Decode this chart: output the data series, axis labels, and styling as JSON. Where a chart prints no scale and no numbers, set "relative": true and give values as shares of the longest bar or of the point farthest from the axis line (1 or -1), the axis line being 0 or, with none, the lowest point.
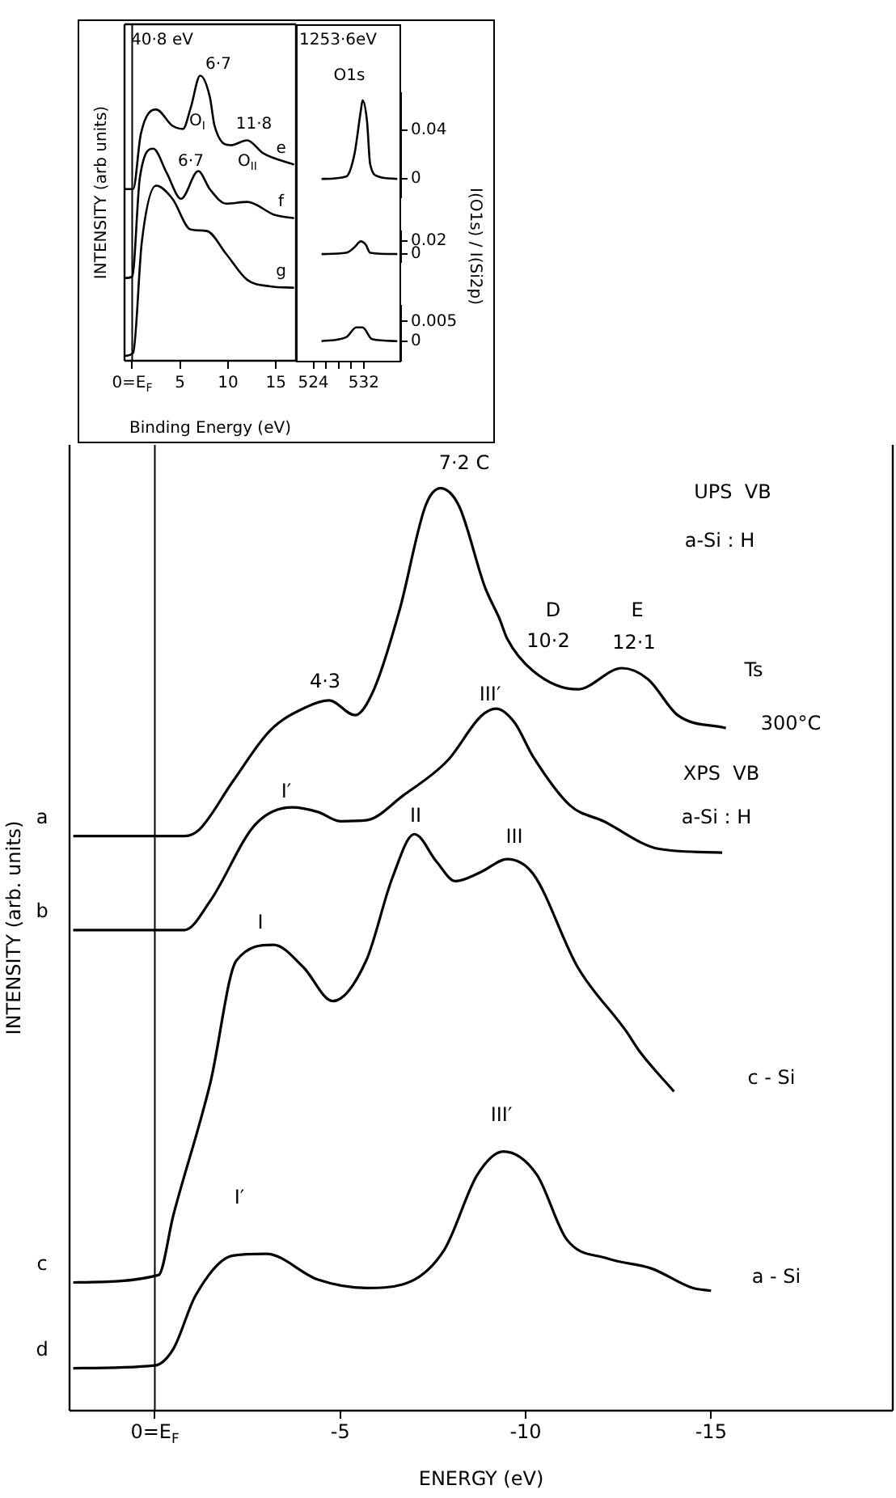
{
  "chart_data": [
    {
      "type": "line",
      "relative": true,
      "marker": "none",
      "xlabel": "ENERGY (eV)",
      "ylabel": "INTENSITY (arb. units)",
      "xlim": [
        2.3,
        -19.9
      ],
      "xticks": [
        {
          "value": 0,
          "label": "0=E$_{F}$"
        },
        -5,
        -10,
        -15
      ],
      "ref_lines": [
        {
          "axis": "x",
          "value": 0
        }
      ],
      "series": [
        {
          "name": "a",
          "color": "#000000",
          "x": [
            2.2,
            -0.8,
            -1.2,
            -2.1,
            -3.1,
            -4.1,
            -4.7,
            -5.4,
            -5.9,
            -6.6,
            -7.3,
            -7.7,
            -8.2,
            -8.9,
            -9.3,
            -9.5,
            -10.2,
            -11.4,
            -12.6,
            -13.3,
            -14.1,
            -15.4
          ],
          "values": [
            0.623,
            0.623,
            0.63,
            0.682,
            0.737,
            0.763,
            0.77,
            0.754,
            0.781,
            0.868,
            0.981,
            1,
            0.981,
            0.893,
            0.858,
            0.837,
            0.802,
            0.782,
            0.805,
            0.793,
            0.754,
            0.74
          ]
        },
        {
          "name": "b",
          "color": "#000000",
          "x": [
            2.2,
            -0.8,
            -1.5,
            -2.7,
            -3.7,
            -4.4,
            -5.0,
            -5.7,
            -6.7,
            -7.9,
            -8.8,
            -9.2,
            -9.7,
            -10.2,
            -11.2,
            -12.1,
            -13.6,
            -15.3
          ],
          "values": [
            0.521,
            0.521,
            0.553,
            0.635,
            0.654,
            0.649,
            0.639,
            0.64,
            0.667,
            0.705,
            0.753,
            0.761,
            0.746,
            0.709,
            0.656,
            0.639,
            0.609,
            0.605
          ]
        },
        {
          "name": "c",
          "color": "#000000",
          "x": [
            2.2,
            -0.1,
            -0.5,
            -1.5,
            -2.2,
            -3.2,
            -4.0,
            -4.8,
            -5.7,
            -6.4,
            -7.0,
            -7.6,
            -8.1,
            -8.8,
            -9.5,
            -10.2,
            -11.4,
            -12.7,
            -13.1,
            -14.0
          ],
          "values": [
            0.139,
            0.147,
            0.212,
            0.356,
            0.488,
            0.505,
            0.481,
            0.444,
            0.488,
            0.577,
            0.625,
            0.595,
            0.574,
            0.584,
            0.598,
            0.582,
            0.481,
            0.412,
            0.388,
            0.346
          ]
        },
        {
          "name": "d",
          "color": "#000000",
          "x": [
            2.2,
            0,
            -0.5,
            -1.1,
            -2.1,
            -3.0,
            -4.4,
            -5.7,
            -6.7,
            -7.8,
            -8.7,
            -9.4,
            -10.3,
            -11.1,
            -12.2,
            -13.4,
            -14.5,
            -15.0
          ],
          "values": [
            0.046,
            0.049,
            0.067,
            0.125,
            0.168,
            0.17,
            0.142,
            0.133,
            0.137,
            0.174,
            0.256,
            0.281,
            0.256,
            0.186,
            0.165,
            0.154,
            0.133,
            0.13
          ]
        }
      ],
      "annotations": [
        "7·2 C",
        "4·3",
        "D",
        "10·2",
        "E",
        "12·1",
        "UPS  VB",
        "a-Si : H",
        "Ts",
        "300°C",
        "XPS  VB",
        "a-Si : H",
        "III′",
        "I′",
        "II",
        "III",
        "I",
        "c - Si",
        "III′",
        "I′",
        "a - Si"
      ]
    },
    {
      "type": "line",
      "relative": true,
      "marker": "none",
      "title": "40·8 eV",
      "xlabel": "Binding Energy (eV)",
      "ylabel": "INTENSITY (arb units)",
      "xlim": [
        -0.8,
        17.1
      ],
      "xticks": [
        {
          "value": 0,
          "label": "0=E$_{F}$"
        },
        5,
        10,
        15
      ],
      "ref_lines": [
        {
          "axis": "x",
          "value": 0
        }
      ],
      "series": [
        {
          "name": "e",
          "color": "#000000",
          "x": [
            -0.8,
            0.1,
            0.9,
            2.5,
            4.2,
            5.3,
            6.1,
            7.1,
            8.1,
            8.6,
            10.3,
            12.0,
            13.7,
            16.9
          ],
          "values": [
            0.602,
            0.602,
            0.795,
            0.881,
            0.824,
            0.813,
            0.886,
            1,
            0.926,
            0.824,
            0.756,
            0.773,
            0.727,
            0.688
          ]
        },
        {
          "name": "f",
          "color": "#000000",
          "x": [
            -0.8,
            0,
            0.8,
            2.2,
            3.6,
            5.1,
            6.9,
            8.1,
            9.8,
            12.0,
            14.9,
            16.9
          ],
          "values": [
            0.29,
            0.295,
            0.642,
            0.744,
            0.659,
            0.568,
            0.665,
            0.602,
            0.551,
            0.557,
            0.511,
            0.5
          ]
        },
        {
          "name": "g",
          "color": "#000000",
          "x": [
            -0.8,
            0.1,
            1.0,
            2.5,
            4.2,
            6.1,
            7.8,
            9.8,
            12.0,
            14.4,
            16.9
          ],
          "values": [
            0.017,
            0.028,
            0.415,
            0.614,
            0.568,
            0.46,
            0.455,
            0.375,
            0.284,
            0.261,
            0.256
          ]
        }
      ],
      "annotations": [
        "6·7",
        "O$_{I}$",
        "11·8",
        "O$_{II}$",
        "6·7"
      ]
    },
    {
      "type": "line",
      "marker": "none",
      "title": "1253·6eV",
      "subtitle": "O1s",
      "tick_labels": "y",
      "xlim": [
        521.5,
        537.9
      ],
      "ylim": [
        -0.015,
        0.07
      ],
      "yticks": [
        0,
        0.04
      ],
      "series": [
        {
          "color": "#000000",
          "x": [
            525.3,
            529.2,
            530.5,
            531.5,
            531.8,
            532.5,
            533.0,
            534.3,
            537.3
          ],
          "values": [
            0,
            0.002,
            0.02,
            0.055,
            0.064,
            0.047,
            0.012,
            0.002,
            0
          ]
        }
      ]
    },
    {
      "type": "line",
      "marker": "none",
      "ylabel": "I(O1s) / I(Si2p)",
      "tick_labels": "y",
      "xlim": [
        521.5,
        537.9
      ],
      "ylim": [
        -0.012,
        0.034
      ],
      "yticks": [
        0,
        0.02
      ],
      "series": [
        {
          "color": "#000000",
          "x": [
            525.3,
            529.2,
            530.5,
            531.5,
            532.3,
            533.0,
            537.3
          ],
          "values": [
            0,
            0.002,
            0.01,
            0.019,
            0.014,
            0.002,
            0
          ]
        }
      ]
    },
    {
      "type": "line",
      "marker": "none",
      "xlim": [
        521.5,
        537.9
      ],
      "xticks": [
        524,
        {
          "value": 526,
          "label": null
        },
        {
          "value": 528,
          "label": null
        },
        {
          "value": 530,
          "label": null
        },
        532
      ],
      "ylim": [
        -0.005,
        0.009
      ],
      "yticks": [
        0,
        0.005
      ],
      "series": [
        {
          "color": "#000000",
          "x": [
            525.3,
            529.2,
            530.8,
            531.8,
            533.3,
            537.3
          ],
          "values": [
            0,
            0.001,
            0.0035,
            0.0035,
            0.0005,
            0
          ]
        }
      ]
    }
  ]
}
